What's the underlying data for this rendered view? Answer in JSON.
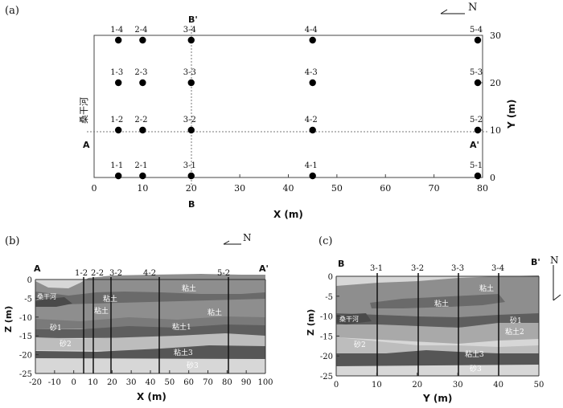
{
  "panel_a": {
    "label": "(a)",
    "north": "N",
    "x_axis_label": "X (m)",
    "y_axis_label": "Y (m)",
    "x_ticks": [
      "0",
      "10",
      "20",
      "30",
      "40",
      "50",
      "60",
      "70",
      "80"
    ],
    "y_ticks": [
      "0",
      "10",
      "20",
      "30"
    ],
    "section_ends": {
      "a": "A",
      "a_prime": "A'",
      "b": "B",
      "b_prime": "B'"
    },
    "side_label": "桑干河",
    "boreholes": [
      {
        "id": "1-1",
        "x": 5,
        "y": 0
      },
      {
        "id": "1-2",
        "x": 5,
        "y": 10
      },
      {
        "id": "1-3",
        "x": 5,
        "y": 20
      },
      {
        "id": "1-4",
        "x": 5,
        "y": 30
      },
      {
        "id": "2-1",
        "x": 10,
        "y": 0
      },
      {
        "id": "2-2",
        "x": 10,
        "y": 10
      },
      {
        "id": "2-3",
        "x": 10,
        "y": 20
      },
      {
        "id": "2-4",
        "x": 10,
        "y": 30
      },
      {
        "id": "3-1",
        "x": 20,
        "y": 0
      },
      {
        "id": "3-2",
        "x": 20,
        "y": 10
      },
      {
        "id": "3-3",
        "x": 20,
        "y": 20
      },
      {
        "id": "3-4",
        "x": 20,
        "y": 30
      },
      {
        "id": "4-1",
        "x": 45,
        "y": 0
      },
      {
        "id": "4-2",
        "x": 45,
        "y": 10
      },
      {
        "id": "4-3",
        "x": 45,
        "y": 20
      },
      {
        "id": "4-4",
        "x": 45,
        "y": 30
      },
      {
        "id": "5-1",
        "x": 80,
        "y": 0
      },
      {
        "id": "5-2",
        "x": 80,
        "y": 10
      },
      {
        "id": "5-3",
        "x": 80,
        "y": 20
      },
      {
        "id": "5-4",
        "x": 80,
        "y": 30
      }
    ]
  },
  "panel_b": {
    "label": "(b)",
    "north": "N",
    "x_axis_label": "X (m)",
    "y_axis_label": "Z (m)",
    "x_ticks": [
      "-20",
      "-10",
      "0",
      "10",
      "20",
      "30",
      "40",
      "50",
      "60",
      "70",
      "80",
      "90",
      "100"
    ],
    "z_ticks": [
      "0",
      "-5",
      "-10",
      "-15",
      "-20",
      "-25"
    ],
    "section_ends": {
      "left": "A",
      "right": "A'"
    },
    "boreholes": [
      "1-2",
      "2-2",
      "3-2",
      "4-2",
      "5-2"
    ],
    "layer_labels": [
      "粘土",
      "粘土",
      "粘土",
      "粘土",
      "砂1",
      "粘土1",
      "砂2",
      "粘土3",
      "砂3",
      "桑干河"
    ]
  },
  "panel_c": {
    "label": "(c)",
    "north": "N",
    "x_axis_label": "Y (m)",
    "y_axis_label": "Z (m)",
    "x_ticks": [
      "0",
      "10",
      "20",
      "30",
      "40",
      "50"
    ],
    "z_ticks": [
      "0",
      "-5",
      "-10",
      "-15",
      "-20",
      "-25"
    ],
    "section_ends": {
      "left": "B",
      "right": "B'"
    },
    "boreholes": [
      "3-1",
      "3-2",
      "3-3",
      "3-4"
    ],
    "layer_labels": [
      "粘土",
      "粘土",
      "桑干河",
      "砂1",
      "粘土2",
      "砂2",
      "粘土3",
      "砂3"
    ]
  }
}
